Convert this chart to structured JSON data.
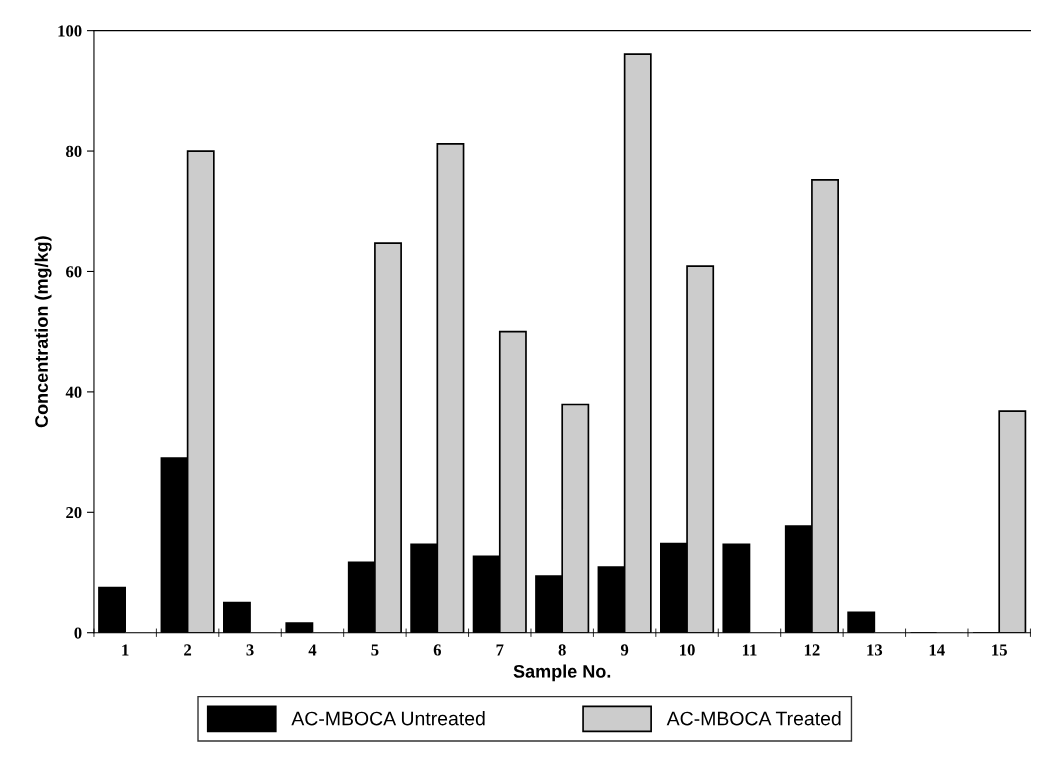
{
  "chart_data": {
    "type": "bar",
    "xlabel": "Sample No.",
    "ylabel": "Concentration (mg/kg)",
    "categories": [
      "1",
      "2",
      "3",
      "4",
      "5",
      "6",
      "7",
      "8",
      "9",
      "10",
      "11",
      "12",
      "13",
      "14",
      "15"
    ],
    "series": [
      {
        "name": "AC-MBOCA Untreated",
        "color": "#000000",
        "values": [
          7.5,
          29,
          5,
          1.6,
          11.7,
          14.7,
          12.7,
          9.4,
          10.9,
          14.8,
          14.7,
          17.7,
          3.4,
          0,
          0
        ]
      },
      {
        "name": "AC-MBOCA Treated",
        "color": "#cccccc",
        "values": [
          0,
          80,
          0,
          0,
          64.7,
          81.2,
          50,
          37.9,
          96.1,
          60.9,
          0,
          75.2,
          0,
          0,
          36.8
        ]
      }
    ],
    "ylim": [
      0,
      100
    ],
    "yticks": [
      0,
      20,
      40,
      60,
      80,
      100
    ],
    "grid": false,
    "legend": "bottom"
  }
}
